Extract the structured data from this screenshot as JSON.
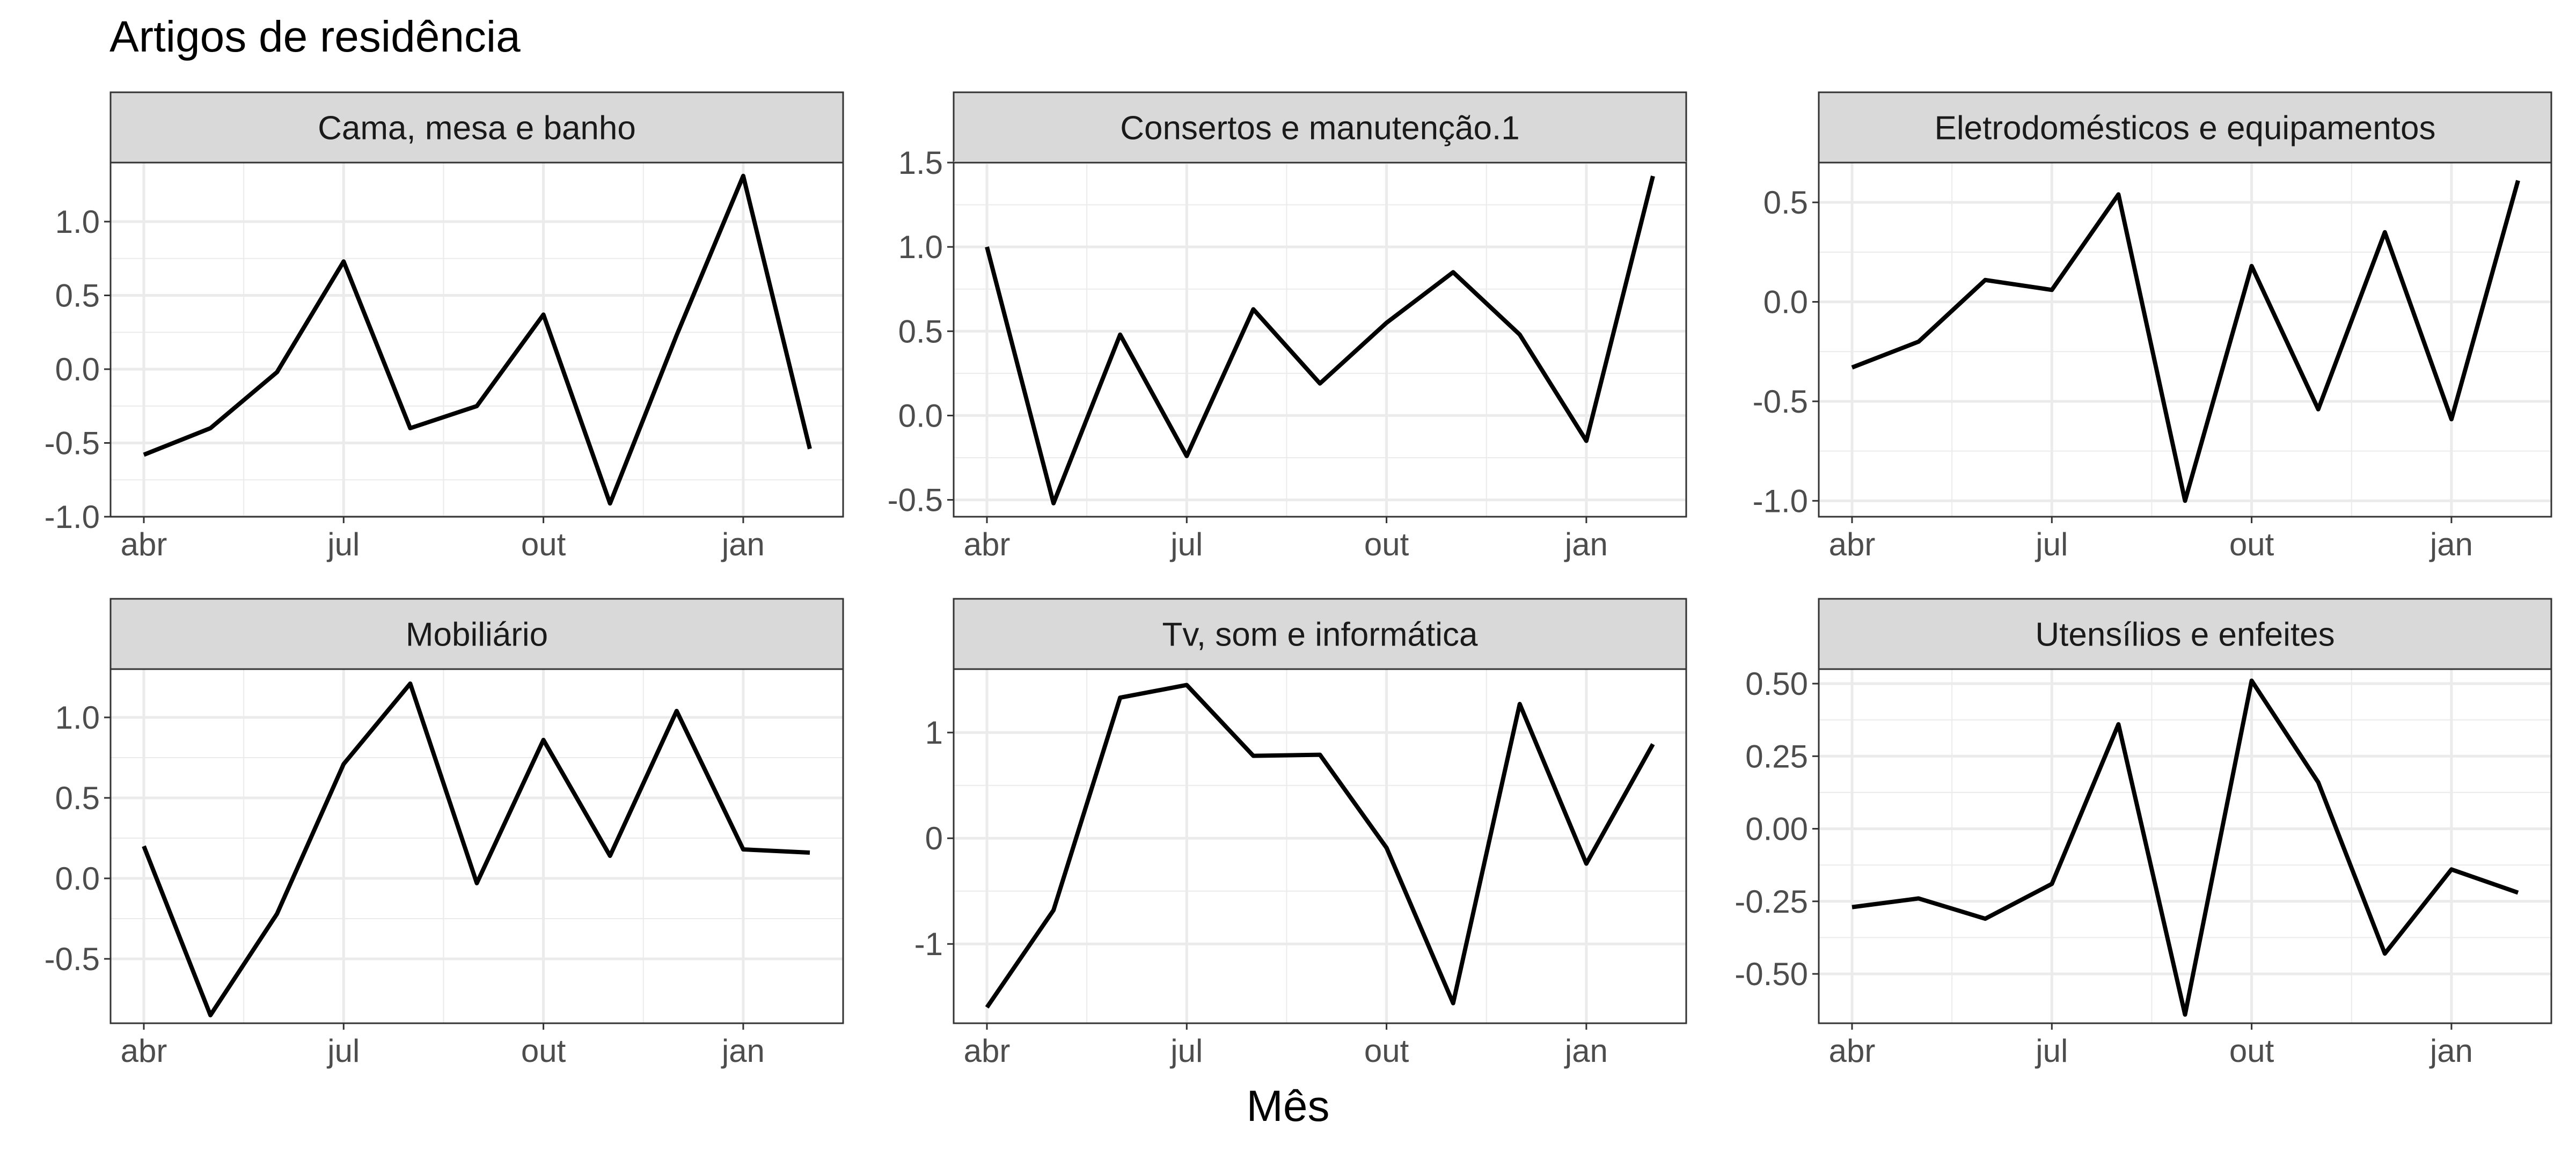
{
  "title": "Artigos de residência",
  "x_axis_label": "Mês",
  "x_tick_labels": [
    "abr",
    "jul",
    "out",
    "jan"
  ],
  "colors": {
    "line": "#000000",
    "strip_fill": "#d9d9d9",
    "grid": "#ebebeb",
    "panel_border": "#333333"
  },
  "chart_data": [
    {
      "type": "line",
      "panel": "Cama, mesa e banho",
      "x": [
        "abr",
        "mai",
        "jun",
        "jul",
        "ago",
        "set",
        "out",
        "nov",
        "dez",
        "jan",
        "fev"
      ],
      "values": [
        -0.58,
        -0.4,
        -0.02,
        0.73,
        -0.4,
        -0.25,
        0.37,
        -0.91,
        0.23,
        1.31,
        -0.54
      ],
      "ylim": [
        -1.0,
        1.4
      ],
      "y_ticks": [
        -1.0,
        -0.5,
        0.0,
        0.5,
        1.0
      ],
      "y_tick_labels": [
        "-1.0",
        "-0.5",
        "0.0",
        "0.5",
        "1.0"
      ]
    },
    {
      "type": "line",
      "panel": "Consertos e manutenção.1",
      "x": [
        "abr",
        "mai",
        "jun",
        "jul",
        "ago",
        "set",
        "out",
        "nov",
        "dez",
        "jan",
        "fev"
      ],
      "values": [
        1.0,
        -0.52,
        0.48,
        -0.24,
        0.63,
        0.19,
        0.55,
        0.85,
        0.48,
        -0.15,
        1.42
      ],
      "ylim": [
        -0.6,
        1.5
      ],
      "y_ticks": [
        -0.5,
        0.0,
        0.5,
        1.0,
        1.5
      ],
      "y_tick_labels": [
        "-0.5",
        "0.0",
        "0.5",
        "1.0",
        "1.5"
      ]
    },
    {
      "type": "line",
      "panel": "Eletrodomésticos e equipamentos",
      "x": [
        "abr",
        "mai",
        "jun",
        "jul",
        "ago",
        "set",
        "out",
        "nov",
        "dez",
        "jan",
        "fev"
      ],
      "values": [
        -0.33,
        -0.2,
        0.11,
        0.06,
        0.54,
        -1.0,
        0.18,
        -0.54,
        0.35,
        -0.59,
        0.61
      ],
      "ylim": [
        -1.08,
        0.7
      ],
      "y_ticks": [
        -1.0,
        -0.5,
        0.0,
        0.5
      ],
      "y_tick_labels": [
        "-1.0",
        "-0.5",
        "0.0",
        "0.5"
      ]
    },
    {
      "type": "line",
      "panel": "Mobiliário",
      "x": [
        "abr",
        "mai",
        "jun",
        "jul",
        "ago",
        "set",
        "out",
        "nov",
        "dez",
        "jan",
        "fev"
      ],
      "values": [
        0.2,
        -0.85,
        -0.22,
        0.71,
        1.21,
        -0.03,
        0.86,
        0.14,
        1.04,
        0.18,
        0.16
      ],
      "ylim": [
        -0.9,
        1.3
      ],
      "y_ticks": [
        -0.5,
        0.0,
        0.5,
        1.0
      ],
      "y_tick_labels": [
        "-0.5",
        "0.0",
        "0.5",
        "1.0"
      ]
    },
    {
      "type": "line",
      "panel": "Tv, som e informática",
      "x": [
        "abr",
        "mai",
        "jun",
        "jul",
        "ago",
        "set",
        "out",
        "nov",
        "dez",
        "jan",
        "fev"
      ],
      "values": [
        -1.6,
        -0.68,
        1.33,
        1.45,
        0.78,
        0.79,
        -0.09,
        -1.56,
        1.27,
        -0.24,
        0.89
      ],
      "ylim": [
        -1.75,
        1.6
      ],
      "y_ticks": [
        -1,
        0,
        1
      ],
      "y_tick_labels": [
        "-1",
        "0",
        "1"
      ]
    },
    {
      "type": "line",
      "panel": "Utensílios e enfeites",
      "x": [
        "abr",
        "mai",
        "jun",
        "jul",
        "ago",
        "set",
        "out",
        "nov",
        "dez",
        "jan",
        "fev"
      ],
      "values": [
        -0.27,
        -0.24,
        -0.31,
        -0.19,
        0.36,
        -0.64,
        0.51,
        0.16,
        -0.43,
        -0.14,
        -0.22
      ],
      "ylim": [
        -0.67,
        0.55
      ],
      "y_ticks": [
        -0.5,
        -0.25,
        0.0,
        0.25,
        0.5
      ],
      "y_tick_labels": [
        "-0.50",
        "-0.25",
        "0.00",
        "0.25",
        "0.50"
      ]
    }
  ]
}
